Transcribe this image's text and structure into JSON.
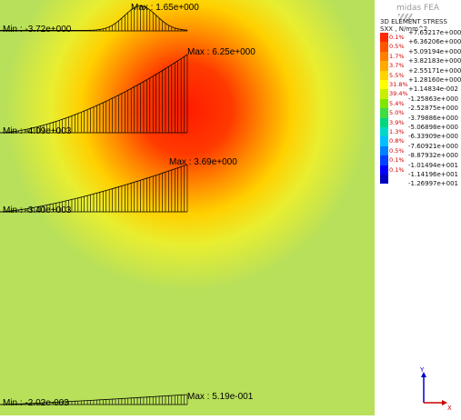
{
  "brand": "midas FEA",
  "legend": {
    "title_line1": "3D ELEMENT STRESS",
    "title_line2": "SXX , N/mm^2",
    "rows": [
      {
        "value": "+7.63217e+000",
        "pct": "",
        "color": "#ff0000"
      },
      {
        "value": "+6.36206e+000",
        "pct": "0.1%",
        "color": "#ff2a00"
      },
      {
        "value": "+5.09194e+000",
        "pct": "0.5%",
        "color": "#ff5500"
      },
      {
        "value": "+3.82183e+000",
        "pct": "1.7%",
        "color": "#ff8000"
      },
      {
        "value": "+2.55171e+000",
        "pct": "3.7%",
        "color": "#ffaa00"
      },
      {
        "value": "+1.28160e+000",
        "pct": "5.5%",
        "color": "#ffd400"
      },
      {
        "value": "+1.14834e-002",
        "pct": "31.8%",
        "color": "#ffff00"
      },
      {
        "value": "-1.25863e+000",
        "pct": "39.4%",
        "color": "#c8f000"
      },
      {
        "value": "-2.52875e+000",
        "pct": "5.4%",
        "color": "#80e600"
      },
      {
        "value": "-3.79886e+000",
        "pct": "5.0%",
        "color": "#40dc40"
      },
      {
        "value": "-5.06898e+000",
        "pct": "3.9%",
        "color": "#00d880"
      },
      {
        "value": "-6.33909e+000",
        "pct": "1.3%",
        "color": "#00d8c8"
      },
      {
        "value": "-7.60921e+000",
        "pct": "0.8%",
        "color": "#00c0ff"
      },
      {
        "value": "-8.87932e+000",
        "pct": "0.5%",
        "color": "#0080ff"
      },
      {
        "value": "-1.01494e+001",
        "pct": "0.1%",
        "color": "#0040ff"
      },
      {
        "value": "-1.14196e+001",
        "pct": "0.1%",
        "color": "#0000ff"
      },
      {
        "value": "-1.26997e+001",
        "pct": "",
        "color": "#0000c0"
      }
    ]
  },
  "plots": [
    {
      "max_label": "Max : 1.65e+000",
      "min_label": "Min : -3.72e+000",
      "peak": 1.0
    },
    {
      "max_label": "Max : 6.25e+000",
      "min_label": "Min : -4.09e+003",
      "peak": 1.0
    },
    {
      "max_label": "Max : 3.69e+000",
      "min_label": "Min : -3.40e+003",
      "peak": 1.0
    },
    {
      "max_label": "Max : 5.19e-001",
      "min_label": "Min : -2.02e-003",
      "peak": 1.0
    }
  ],
  "axes": {
    "x_label": "X",
    "y_label": "Y"
  },
  "colors": {
    "background_field": "#b8e05a",
    "hotspot": "#ff2200"
  }
}
